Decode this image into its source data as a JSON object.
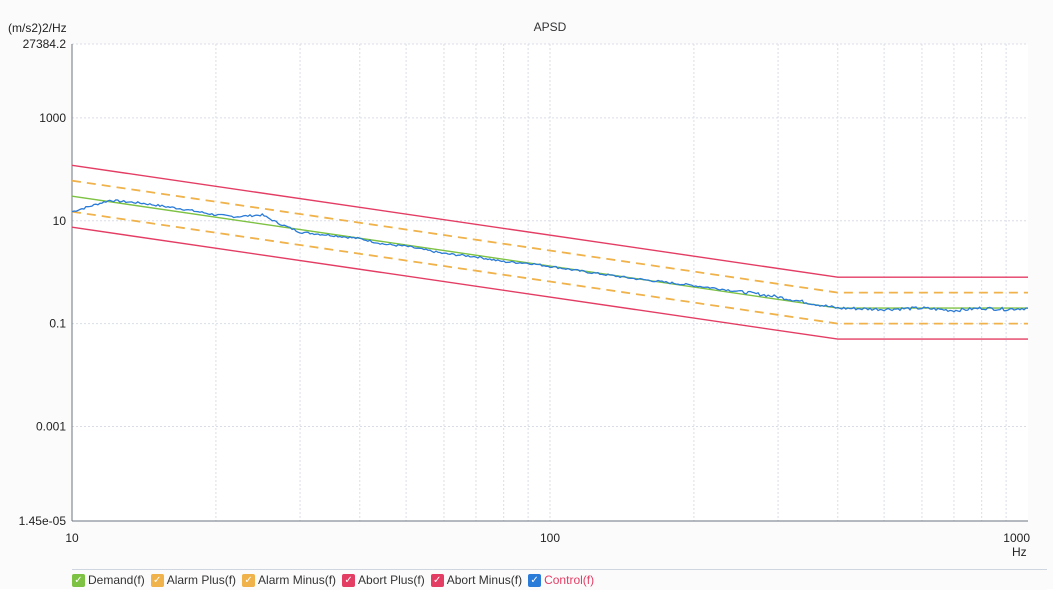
{
  "chart_data": {
    "type": "line",
    "title": "APSD",
    "ylabel": "(m/s2)2/Hz",
    "xlabel": "Hz",
    "xscale": "log",
    "yscale": "log",
    "xlim": [
      10,
      1000
    ],
    "ylim": [
      1.45e-05,
      27384.2
    ],
    "x_ticks": [
      "10",
      "100",
      "1000"
    ],
    "y_ticks": [
      "27384.2",
      "1000",
      "10",
      "0.1",
      "0.001",
      "1.45e-05"
    ],
    "grid": true,
    "legend_position": "bottom",
    "series": [
      {
        "name": "Demand(f)",
        "color": "#7dc242",
        "style": "solid",
        "x": [
          10,
          400,
          1000
        ],
        "y": [
          30,
          0.2,
          0.2
        ]
      },
      {
        "name": "Alarm Plus(f)",
        "color": "#f0b24a",
        "style": "dashed",
        "x": [
          10,
          400,
          1000
        ],
        "y": [
          60,
          0.4,
          0.4
        ]
      },
      {
        "name": "Alarm Minus(f)",
        "color": "#f0b24a",
        "style": "dashed",
        "x": [
          10,
          400,
          1000
        ],
        "y": [
          15,
          0.1,
          0.1
        ]
      },
      {
        "name": "Abort Plus(f)",
        "color": "#e43d64",
        "style": "solid",
        "x": [
          10,
          400,
          1000
        ],
        "y": [
          120,
          0.8,
          0.8
        ]
      },
      {
        "name": "Abort Minus(f)",
        "color": "#e43d64",
        "style": "solid",
        "x": [
          10,
          400,
          1000
        ],
        "y": [
          7.5,
          0.05,
          0.05
        ]
      },
      {
        "name": "Control(f)",
        "color": "#2b7bd8",
        "style": "solid",
        "x": [
          10,
          12,
          14,
          17,
          20,
          22,
          25,
          27,
          30,
          35,
          40,
          45,
          50,
          60,
          70,
          80,
          90,
          100,
          120,
          150,
          200,
          250,
          300,
          350,
          400,
          500,
          600,
          700,
          800,
          900,
          1000
        ],
        "y": [
          15,
          25,
          22,
          17,
          13,
          12,
          13,
          9,
          6,
          5.2,
          4.5,
          3.5,
          3.2,
          2.3,
          2.0,
          1.6,
          1.5,
          1.3,
          1.0,
          0.75,
          0.55,
          0.42,
          0.33,
          0.25,
          0.2,
          0.19,
          0.2,
          0.18,
          0.2,
          0.19,
          0.2
        ]
      }
    ]
  },
  "legend": {
    "demand": "Demand(f)",
    "alarm_plus": "Alarm Plus(f)",
    "alarm_minus": "Alarm Minus(f)",
    "abort_plus": "Abort Plus(f)",
    "abort_minus": "Abort Minus(f)",
    "control": "Control(f)"
  }
}
